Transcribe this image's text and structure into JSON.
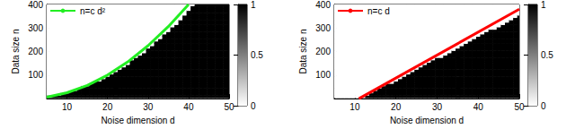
{
  "chart_data": [
    {
      "type": "heatmap",
      "x_label": "Noise dimension d",
      "y_label": "Data size n",
      "xlim": [
        5,
        50
      ],
      "xticks": [
        10,
        20,
        30,
        40,
        50
      ],
      "ylim": [
        0,
        400
      ],
      "yticks": [
        100,
        200,
        300,
        400
      ],
      "x": [
        5,
        6,
        7,
        8,
        9,
        10,
        11,
        12,
        13,
        14,
        15,
        16,
        17,
        18,
        19,
        20,
        21,
        22,
        23,
        24,
        25,
        26,
        27,
        28,
        29,
        30,
        31,
        32,
        33,
        34,
        35,
        36,
        37,
        38,
        39,
        40,
        41,
        42,
        43,
        44,
        45,
        46,
        47,
        48,
        49,
        50
      ],
      "y": [
        10,
        20,
        30,
        40,
        50,
        60,
        70,
        80,
        90,
        100,
        110,
        120,
        130,
        140,
        150,
        160,
        170,
        180,
        190,
        200,
        210,
        220,
        230,
        240,
        250,
        260,
        270,
        280,
        290,
        300,
        310,
        320,
        330,
        340,
        350,
        360,
        370,
        380,
        390,
        400
      ],
      "boundary": [
        10,
        10,
        10,
        10,
        20,
        20,
        30,
        30,
        40,
        50,
        50,
        60,
        70,
        70,
        80,
        90,
        100,
        110,
        120,
        130,
        140,
        160,
        170,
        180,
        190,
        210,
        220,
        240,
        250,
        270,
        280,
        300,
        310,
        330,
        350,
        370,
        390,
        400,
        400,
        400,
        400,
        400,
        400,
        400,
        400,
        400
      ],
      "colorbar": {
        "range": [
          0,
          1
        ],
        "ticks": [
          0,
          0.5,
          1
        ]
      },
      "series": [
        {
          "name": "n=c d²",
          "type": "line",
          "color": "#22ee22",
          "x": [
            5,
            10,
            15,
            20,
            25,
            30,
            35,
            40
          ],
          "values": [
            6,
            25,
            56,
            100,
            156,
            225,
            306,
            400
          ]
        }
      ],
      "legend": "upper left"
    },
    {
      "type": "heatmap",
      "x_label": "Noise dimension d",
      "y_label": "Data size n",
      "xlim": [
        5,
        50
      ],
      "xticks": [
        10,
        20,
        30,
        40,
        50
      ],
      "ylim": [
        0,
        400
      ],
      "yticks": [
        100,
        200,
        300,
        400
      ],
      "x": [
        5,
        6,
        7,
        8,
        9,
        10,
        11,
        12,
        13,
        14,
        15,
        16,
        17,
        18,
        19,
        20,
        21,
        22,
        23,
        24,
        25,
        26,
        27,
        28,
        29,
        30,
        31,
        32,
        33,
        34,
        35,
        36,
        37,
        38,
        39,
        40,
        41,
        42,
        43,
        44,
        45,
        46,
        47,
        48,
        49,
        50
      ],
      "y": [
        10,
        20,
        30,
        40,
        50,
        60,
        70,
        80,
        90,
        100,
        110,
        120,
        130,
        140,
        150,
        160,
        170,
        180,
        190,
        200,
        210,
        220,
        230,
        240,
        250,
        260,
        270,
        280,
        290,
        300,
        310,
        320,
        330,
        340,
        350,
        360,
        370,
        380,
        390,
        400
      ],
      "boundary": [
        0,
        0,
        0,
        0,
        0,
        0,
        0,
        0,
        10,
        20,
        30,
        40,
        50,
        60,
        60,
        70,
        80,
        90,
        100,
        110,
        120,
        130,
        140,
        150,
        160,
        170,
        170,
        180,
        190,
        200,
        210,
        220,
        230,
        240,
        250,
        260,
        270,
        280,
        290,
        290,
        300,
        310,
        320,
        330,
        340,
        350
      ],
      "colorbar": {
        "range": [
          0,
          1
        ],
        "ticks": [
          0,
          0.5,
          1
        ]
      },
      "series": [
        {
          "name": "n=c d",
          "type": "line",
          "color": "#ff0000",
          "x": [
            11,
            50
          ],
          "values": [
            0,
            380
          ]
        }
      ],
      "legend": "upper left"
    }
  ]
}
